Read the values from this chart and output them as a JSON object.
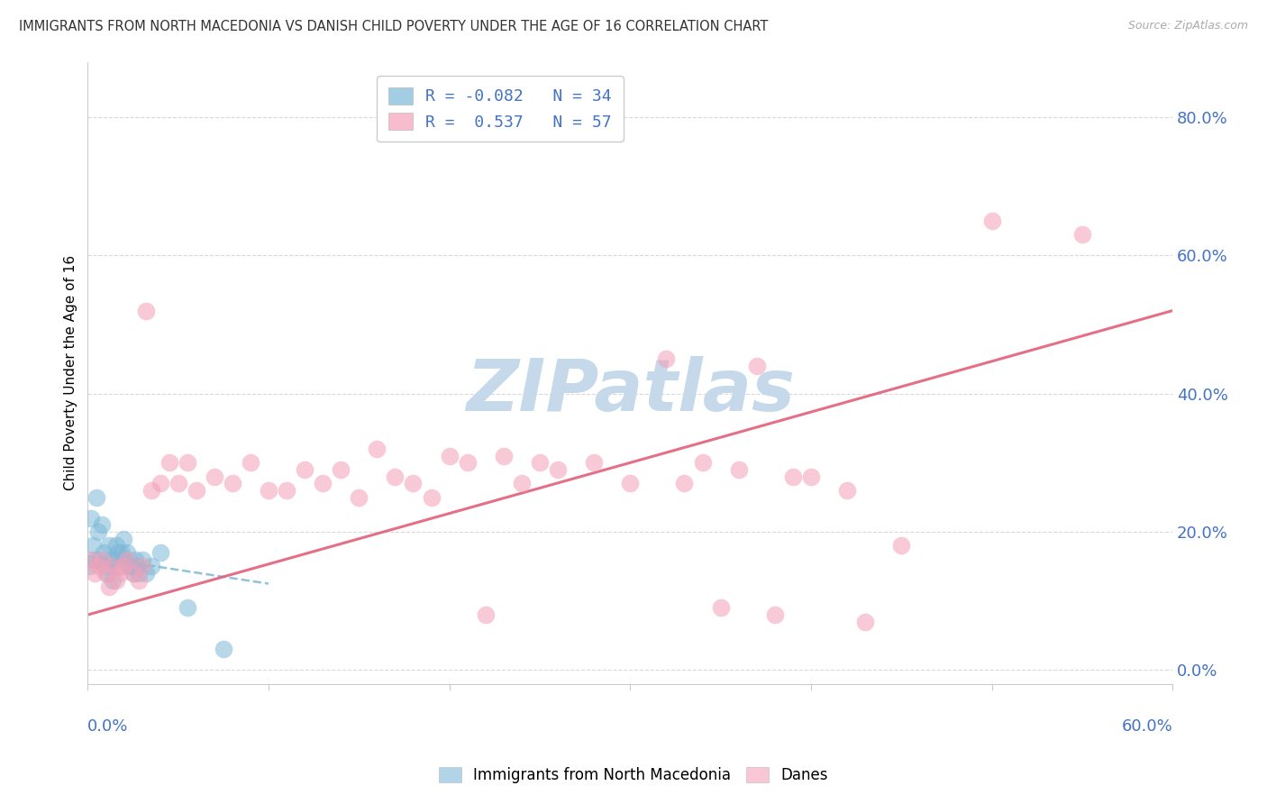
{
  "title": "IMMIGRANTS FROM NORTH MACEDONIA VS DANISH CHILD POVERTY UNDER THE AGE OF 16 CORRELATION CHART",
  "source": "Source: ZipAtlas.com",
  "ylabel": "Child Poverty Under the Age of 16",
  "ytick_values": [
    0,
    20,
    40,
    60,
    80
  ],
  "ytick_labels": [
    "0.0%",
    "20.0%",
    "40.0%",
    "60.0%",
    "80.0%"
  ],
  "xlim": [
    0,
    60
  ],
  "ylim": [
    -2,
    88
  ],
  "legend_R1": "-0.082",
  "legend_N1": "34",
  "legend_R2": "0.537",
  "legend_N2": "57",
  "blue_color": "#7db8d8",
  "pink_color": "#f4a0b8",
  "blue_scatter": {
    "x": [
      0.1,
      0.2,
      0.3,
      0.4,
      0.5,
      0.6,
      0.7,
      0.8,
      0.9,
      1.0,
      1.1,
      1.2,
      1.3,
      1.4,
      1.5,
      1.6,
      1.7,
      1.8,
      1.9,
      2.0,
      2.1,
      2.2,
      2.3,
      2.4,
      2.5,
      2.6,
      2.7,
      2.8,
      3.0,
      3.2,
      3.5,
      4.0,
      5.5,
      7.5
    ],
    "y": [
      15,
      22,
      18,
      16,
      25,
      20,
      16,
      21,
      17,
      15,
      14,
      18,
      16,
      13,
      16,
      18,
      17,
      15,
      17,
      19,
      16,
      17,
      15,
      15,
      14,
      16,
      15,
      14,
      16,
      14,
      15,
      17,
      9,
      3
    ]
  },
  "pink_scatter": {
    "x": [
      0.2,
      0.4,
      0.6,
      0.8,
      1.0,
      1.2,
      1.4,
      1.6,
      1.8,
      2.0,
      2.2,
      2.5,
      2.8,
      3.0,
      3.2,
      3.5,
      4.0,
      4.5,
      5.0,
      5.5,
      6.0,
      7.0,
      8.0,
      9.0,
      10.0,
      11.0,
      12.0,
      13.0,
      14.0,
      15.0,
      16.0,
      17.0,
      18.0,
      19.0,
      20.0,
      21.0,
      22.0,
      23.0,
      24.0,
      25.0,
      26.0,
      28.0,
      30.0,
      32.0,
      33.0,
      34.0,
      35.0,
      36.0,
      37.0,
      38.0,
      39.0,
      40.0,
      42.0,
      43.0,
      45.0,
      50.0,
      55.0
    ],
    "y": [
      16,
      14,
      15,
      16,
      14,
      12,
      15,
      13,
      14,
      15,
      16,
      14,
      13,
      15,
      52,
      26,
      27,
      30,
      27,
      30,
      26,
      28,
      27,
      30,
      26,
      26,
      29,
      27,
      29,
      25,
      32,
      28,
      27,
      25,
      31,
      30,
      8,
      31,
      27,
      30,
      29,
      30,
      27,
      45,
      27,
      30,
      9,
      29,
      44,
      8,
      28,
      28,
      26,
      7,
      18,
      65,
      63
    ]
  },
  "blue_trend_x": [
    0,
    10
  ],
  "blue_trend_y": [
    16.5,
    12.5
  ],
  "pink_trend_x": [
    0,
    60
  ],
  "pink_trend_y": [
    8,
    52
  ],
  "watermark": "ZIPatlas",
  "watermark_color": "#c5d9ea",
  "background_color": "#ffffff",
  "grid_color": "#d5d5d5",
  "title_color": "#333333",
  "axis_label_color": "#4472c4",
  "legend_text_color": "#4472c4"
}
